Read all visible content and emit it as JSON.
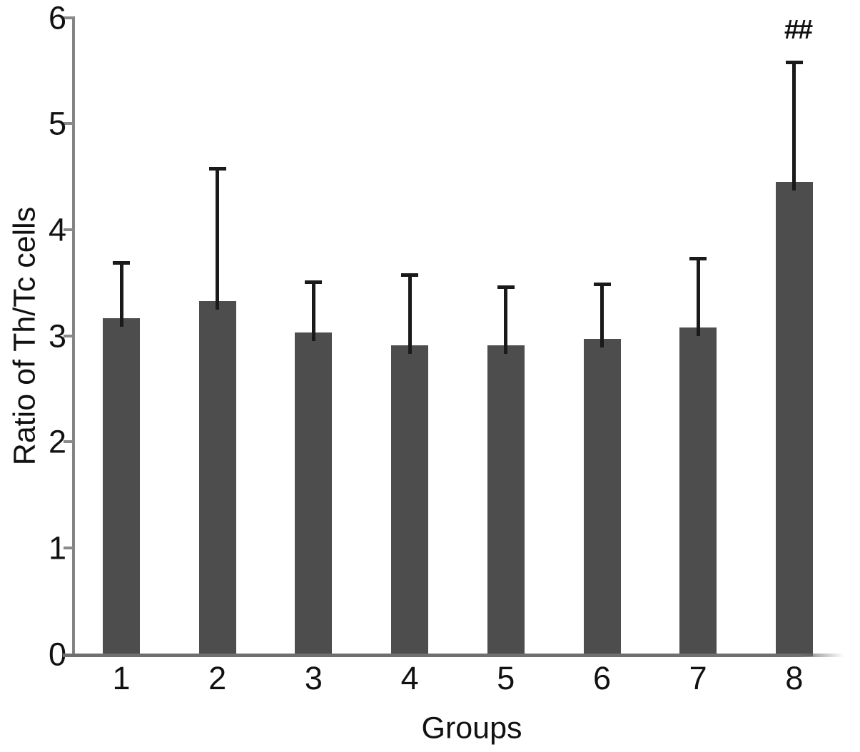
{
  "chart_data": {
    "type": "bar",
    "title": "",
    "xlabel": "Groups",
    "ylabel": "Ratio of Th/Tc cells",
    "categories": [
      "1",
      "2",
      "3",
      "4",
      "5",
      "6",
      "7",
      "8"
    ],
    "values": [
      3.17,
      3.33,
      3.03,
      2.91,
      2.91,
      2.97,
      3.08,
      4.45
    ],
    "errors_plus": [
      0.52,
      1.25,
      0.48,
      0.67,
      0.55,
      0.52,
      0.65,
      1.13
    ],
    "ylim": [
      0,
      6
    ],
    "yticks": [
      0,
      1,
      2,
      3,
      4,
      5,
      6
    ],
    "grid": false,
    "legend": "none",
    "bar_color": "#4d4d4d",
    "error_bar_color": "#1a1a1a",
    "axis_color": "#848484",
    "annotation": {
      "text": "##",
      "target_category": "8",
      "meaning": "significance-marker-above-bar-8"
    }
  }
}
